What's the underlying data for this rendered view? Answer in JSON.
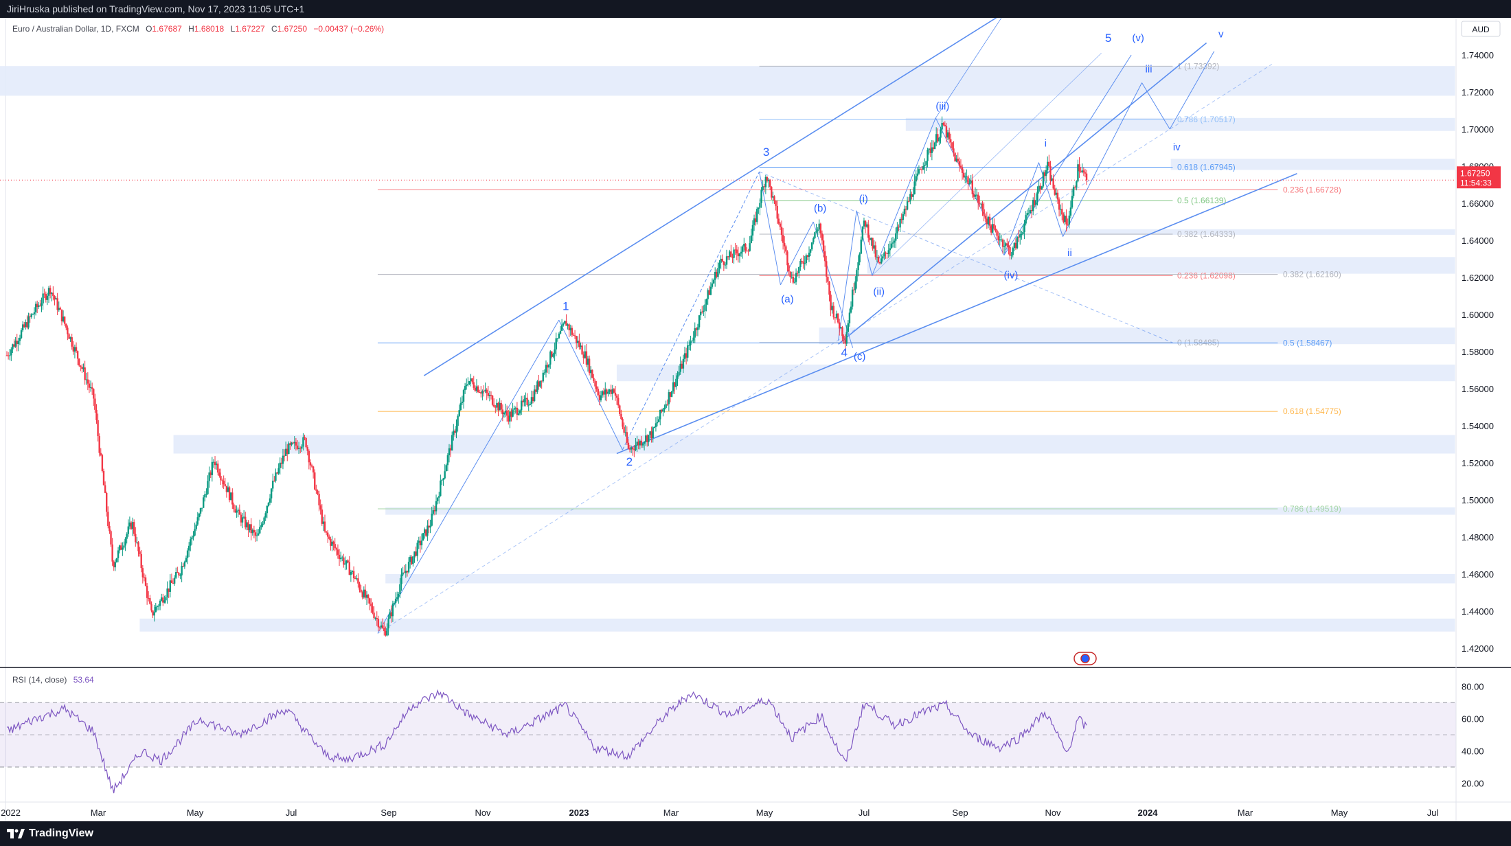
{
  "header": {
    "published_by": "JiriHruska published on TradingView.com, Nov 17, 2023 11:05 UTC+1"
  },
  "footer": {
    "brand": "TradingView",
    "brand_icon": "tradingview-logo-icon"
  },
  "legend": {
    "symbol": "Euro / Australian Dollar, 1D, FXCM",
    "o_label": "O",
    "o_value": "1.67687",
    "h_label": "H",
    "h_value": "1.68018",
    "l_label": "L",
    "l_value": "1.67227",
    "c_label": "C",
    "c_value": "1.67250",
    "change": "−0.00437 (−0.26%)"
  },
  "currency": "AUD",
  "last_price": {
    "value": "1.67250",
    "countdown": "11:54:33",
    "color": "#f23645"
  },
  "rsi": {
    "label": "RSI (14, close)",
    "value": "53.64",
    "color": "#7e57c2",
    "upper": 70,
    "mid": 50,
    "lower": 30
  },
  "chart_data": {
    "type": "candlestick",
    "title": "Euro / Australian Dollar, 1D, FXCM",
    "colors": {
      "up": "#089981",
      "down": "#f23645",
      "lines": "#5b8ef0"
    },
    "x_axis": {
      "ticks": [
        "2022",
        "Mar",
        "May",
        "Jul",
        "Sep",
        "Nov",
        "2023",
        "Mar",
        "May",
        "Jul",
        "Sep",
        "Nov",
        "2024",
        "Mar",
        "May",
        "Jul"
      ]
    },
    "y_axis": {
      "min": 1.41,
      "max": 1.76,
      "ticks": [
        "1.74000",
        "1.72000",
        "1.70000",
        "1.68000",
        "1.66000",
        "1.64000",
        "1.62000",
        "1.60000",
        "1.58000",
        "1.56000",
        "1.54000",
        "1.52000",
        "1.50000",
        "1.48000",
        "1.46000",
        "1.44000",
        "1.42000"
      ]
    },
    "rsi_axis": {
      "min": 10,
      "max": 90,
      "ticks": [
        "80.00",
        "60.00",
        "40.00",
        "20.00"
      ]
    },
    "price_path": [
      {
        "t": 0,
        "p": 1.578
      },
      {
        "t": 30,
        "p": 1.603
      },
      {
        "t": 45,
        "p": 1.614
      },
      {
        "t": 60,
        "p": 1.595
      },
      {
        "t": 90,
        "p": 1.555
      },
      {
        "t": 110,
        "p": 1.465
      },
      {
        "t": 130,
        "p": 1.488
      },
      {
        "t": 150,
        "p": 1.438
      },
      {
        "t": 180,
        "p": 1.462
      },
      {
        "t": 200,
        "p": 1.492
      },
      {
        "t": 215,
        "p": 1.522
      },
      {
        "t": 240,
        "p": 1.492
      },
      {
        "t": 260,
        "p": 1.479
      },
      {
        "t": 275,
        "p": 1.507
      },
      {
        "t": 290,
        "p": 1.527
      },
      {
        "t": 310,
        "p": 1.532
      },
      {
        "t": 330,
        "p": 1.482
      },
      {
        "t": 360,
        "p": 1.459
      },
      {
        "t": 392,
        "p": 1.428
      },
      {
        "t": 410,
        "p": 1.458
      },
      {
        "t": 440,
        "p": 1.488
      },
      {
        "t": 460,
        "p": 1.528
      },
      {
        "t": 478,
        "p": 1.565
      },
      {
        "t": 500,
        "p": 1.556
      },
      {
        "t": 520,
        "p": 1.545
      },
      {
        "t": 545,
        "p": 1.555
      },
      {
        "t": 580,
        "p": 1.596
      },
      {
        "t": 600,
        "p": 1.578
      },
      {
        "t": 615,
        "p": 1.556
      },
      {
        "t": 630,
        "p": 1.56
      },
      {
        "t": 645,
        "p": 1.527
      },
      {
        "t": 670,
        "p": 1.536
      },
      {
        "t": 700,
        "p": 1.572
      },
      {
        "t": 740,
        "p": 1.628
      },
      {
        "t": 770,
        "p": 1.637
      },
      {
        "t": 788,
        "p": 1.676
      },
      {
        "t": 800,
        "p": 1.652
      },
      {
        "t": 815,
        "p": 1.618
      },
      {
        "t": 830,
        "p": 1.632
      },
      {
        "t": 843,
        "p": 1.649
      },
      {
        "t": 855,
        "p": 1.605
      },
      {
        "t": 870,
        "p": 1.587
      },
      {
        "t": 890,
        "p": 1.651
      },
      {
        "t": 905,
        "p": 1.626
      },
      {
        "t": 925,
        "p": 1.646
      },
      {
        "t": 950,
        "p": 1.681
      },
      {
        "t": 972,
        "p": 1.702
      },
      {
        "t": 985,
        "p": 1.683
      },
      {
        "t": 1000,
        "p": 1.67
      },
      {
        "t": 1020,
        "p": 1.648
      },
      {
        "t": 1043,
        "p": 1.633
      },
      {
        "t": 1065,
        "p": 1.66
      },
      {
        "t": 1080,
        "p": 1.68
      },
      {
        "t": 1090,
        "p": 1.661
      },
      {
        "t": 1100,
        "p": 1.648
      },
      {
        "t": 1112,
        "p": 1.68
      },
      {
        "t": 1121,
        "p": 1.6725
      }
    ],
    "rsi_path": [
      {
        "t": 0,
        "v": 52
      },
      {
        "t": 30,
        "v": 60
      },
      {
        "t": 60,
        "v": 66
      },
      {
        "t": 90,
        "v": 52
      },
      {
        "t": 110,
        "v": 15
      },
      {
        "t": 140,
        "v": 40
      },
      {
        "t": 160,
        "v": 34
      },
      {
        "t": 200,
        "v": 60
      },
      {
        "t": 240,
        "v": 50
      },
      {
        "t": 290,
        "v": 66
      },
      {
        "t": 330,
        "v": 38
      },
      {
        "t": 350,
        "v": 34
      },
      {
        "t": 392,
        "v": 44
      },
      {
        "t": 420,
        "v": 68
      },
      {
        "t": 450,
        "v": 76
      },
      {
        "t": 480,
        "v": 62
      },
      {
        "t": 520,
        "v": 50
      },
      {
        "t": 580,
        "v": 68
      },
      {
        "t": 610,
        "v": 42
      },
      {
        "t": 645,
        "v": 37
      },
      {
        "t": 680,
        "v": 60
      },
      {
        "t": 710,
        "v": 76
      },
      {
        "t": 750,
        "v": 62
      },
      {
        "t": 790,
        "v": 72
      },
      {
        "t": 815,
        "v": 48
      },
      {
        "t": 845,
        "v": 62
      },
      {
        "t": 870,
        "v": 32
      },
      {
        "t": 890,
        "v": 70
      },
      {
        "t": 920,
        "v": 56
      },
      {
        "t": 960,
        "v": 66
      },
      {
        "t": 975,
        "v": 68
      },
      {
        "t": 1000,
        "v": 50
      },
      {
        "t": 1030,
        "v": 42
      },
      {
        "t": 1050,
        "v": 48
      },
      {
        "t": 1078,
        "v": 64
      },
      {
        "t": 1100,
        "v": 38
      },
      {
        "t": 1112,
        "v": 60
      },
      {
        "t": 1121,
        "v": 53.64
      }
    ],
    "zones": [
      {
        "x0": 0,
        "x1": 1510,
        "y0": 1.718,
        "y1": 1.734
      },
      {
        "x0": 940,
        "x1": 1510,
        "y0": 1.699,
        "y1": 1.706
      },
      {
        "x0": 1215,
        "x1": 1510,
        "y0": 1.678,
        "y1": 1.684
      },
      {
        "x0": 1100,
        "x1": 1510,
        "y0": 1.643,
        "y1": 1.646
      },
      {
        "x0": 900,
        "x1": 1510,
        "y0": 1.622,
        "y1": 1.631
      },
      {
        "x0": 850,
        "x1": 1510,
        "y0": 1.584,
        "y1": 1.593
      },
      {
        "x0": 640,
        "x1": 1510,
        "y0": 1.564,
        "y1": 1.573
      },
      {
        "x0": 180,
        "x1": 1510,
        "y0": 1.525,
        "y1": 1.535
      },
      {
        "x0": 400,
        "x1": 1510,
        "y0": 1.492,
        "y1": 1.496
      },
      {
        "x0": 400,
        "x1": 1510,
        "y0": 1.455,
        "y1": 1.46
      },
      {
        "x0": 145,
        "x1": 1510,
        "y0": 1.429,
        "y1": 1.436
      }
    ],
    "fib_set_a": {
      "x0": 788,
      "x1": 1217,
      "color": "#b2b5be",
      "levels": [
        {
          "label": "1 (1.73392)",
          "price": 1.73392,
          "color": "#b2b5be"
        },
        {
          "label": "0.786 (1.70517)",
          "price": 1.70517,
          "color": "#90bff9"
        },
        {
          "label": "0.618 (1.67945)",
          "price": 1.67945,
          "color": "#5b9cf6"
        },
        {
          "label": "0.5 (1.66139)",
          "price": 1.66139,
          "color": "#81c784"
        },
        {
          "label": "0.382 (1.64333)",
          "price": 1.64333,
          "color": "#b2b5be"
        },
        {
          "label": "0.236 (1.62098)",
          "price": 1.62098,
          "color": "#f77c80"
        },
        {
          "label": "0 (1.58485)",
          "price": 1.58485,
          "color": "#b2b5be"
        }
      ]
    },
    "fib_set_b": {
      "x0": 392,
      "x1": 1326,
      "levels": [
        {
          "label": "0.236 (1.66728)",
          "price": 1.66728,
          "color": "#f77c80"
        },
        {
          "label": "0.382 (1.62160)",
          "price": 1.6216,
          "color": "#b2b5be"
        },
        {
          "label": "0.5 (1.58467)",
          "price": 1.58467,
          "color": "#5b9cf6"
        },
        {
          "label": "0.618 (1.54775)",
          "price": 1.54775,
          "color": "#ffb74d"
        },
        {
          "label": "0.786 (1.49519)",
          "price": 1.49519,
          "color": "#a5d6a7"
        }
      ]
    },
    "wave_labels": [
      {
        "text": "1",
        "t": 580,
        "p": 1.6025,
        "size": 17
      },
      {
        "text": "2",
        "t": 646,
        "p": 1.5185,
        "size": 17
      },
      {
        "text": "3",
        "t": 788,
        "p": 1.6855,
        "size": 17
      },
      {
        "text": "4",
        "t": 869,
        "p": 1.5775,
        "size": 17
      },
      {
        "text": "5",
        "t": 1143,
        "p": 1.747,
        "size": 17
      },
      {
        "text": "(a)",
        "t": 810,
        "p": 1.6065,
        "size": 15
      },
      {
        "text": "(b)",
        "t": 844,
        "p": 1.6555,
        "size": 15
      },
      {
        "text": "(c)",
        "t": 885,
        "p": 1.5755,
        "size": 15
      },
      {
        "text": "(i)",
        "t": 889,
        "p": 1.6605,
        "size": 15
      },
      {
        "text": "(ii)",
        "t": 905,
        "p": 1.6105,
        "size": 15
      },
      {
        "text": "(iii)",
        "t": 971,
        "p": 1.7105,
        "size": 15
      },
      {
        "text": "(iv)",
        "t": 1042,
        "p": 1.6195,
        "size": 15
      },
      {
        "text": "(v)",
        "t": 1174,
        "p": 1.7475,
        "size": 15
      },
      {
        "text": "i",
        "t": 1078,
        "p": 1.6905,
        "size": 15
      },
      {
        "text": "ii",
        "t": 1103,
        "p": 1.6315,
        "size": 15
      },
      {
        "text": "iii",
        "t": 1185,
        "p": 1.7305,
        "size": 15
      },
      {
        "text": "iv",
        "t": 1214,
        "p": 1.6885,
        "size": 15
      },
      {
        "text": "v",
        "t": 1260,
        "p": 1.7495,
        "size": 15
      }
    ]
  }
}
